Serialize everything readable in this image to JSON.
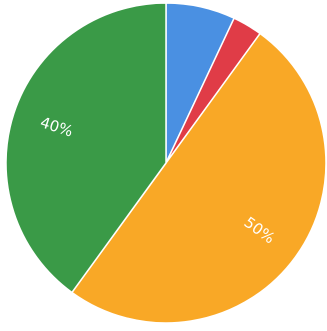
{
  "chart_data": {
    "type": "pie",
    "start_angle_deg": 0,
    "direction": "clockwise",
    "slices": [
      {
        "value": 7,
        "label": "",
        "color": "#4a90e2"
      },
      {
        "value": 3,
        "label": "",
        "color": "#e03c47"
      },
      {
        "value": 50,
        "label": "50%",
        "color": "#f9a826"
      },
      {
        "value": 40,
        "label": "40%",
        "color": "#3a9a47"
      }
    ],
    "legend": "none"
  }
}
